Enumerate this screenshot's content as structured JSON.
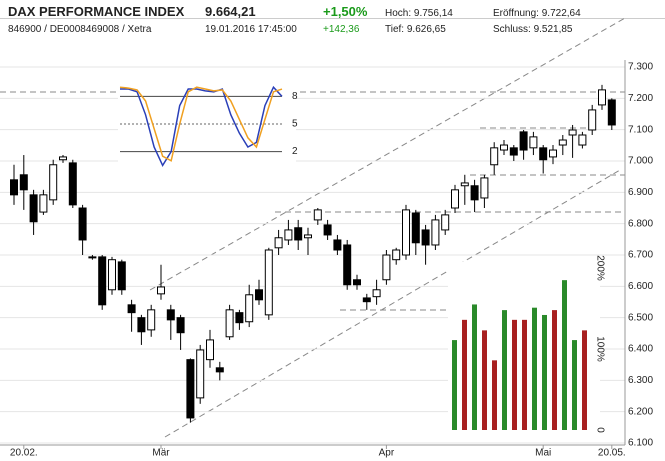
{
  "header": {
    "title": "DAX PERFORMANCE INDEX",
    "price": "9.664,21",
    "change_pct": "+1,50%",
    "high": "Hoch: 9.756,14",
    "open": "Eröffnung: 9.722,64",
    "ids": "846900 / DE0008469008 / Xetra",
    "datetime": "19.01.2016 17:45:00",
    "change_abs": "+142,36",
    "low": "Tief: 9.626,65",
    "close": "Schluss: 9.521,85"
  },
  "chart_data": [
    {
      "type": "candlestick",
      "up_color": "#ffffff",
      "down_color": "#000000",
      "categories": [
        null,
        "20.02.",
        null,
        null,
        null,
        null,
        null,
        null,
        null,
        null,
        null,
        null,
        null,
        null,
        null,
        "Mär",
        null,
        null,
        null,
        null,
        null,
        null,
        null,
        null,
        null,
        null,
        null,
        null,
        null,
        null,
        null,
        null,
        null,
        null,
        null,
        null,
        null,
        null,
        "Apr",
        null,
        null,
        null,
        null,
        null,
        null,
        null,
        null,
        null,
        null,
        null,
        null,
        null,
        null,
        null,
        "Mai",
        null,
        null,
        null,
        null,
        null,
        null,
        "20.05."
      ],
      "open": [
        6940,
        6956,
        6892,
        6837,
        6876,
        7004,
        6994,
        6850,
        6694,
        6694,
        6589,
        6678,
        6541,
        6500,
        6461,
        6576,
        6525,
        6500,
        6366,
        6244,
        6366,
        6340,
        6439,
        6516,
        6487,
        6589,
        6509,
        6723,
        6748,
        6787,
        6755,
        6812,
        6796,
        6748,
        6732,
        6621,
        6563,
        6567,
        6621,
        6685,
        6700,
        6834,
        6780,
        6732,
        6780,
        6850,
        6921,
        6921,
        6882,
        6988,
        7035,
        7042,
        7093,
        7042,
        7042,
        7013,
        7051,
        7083,
        7051,
        7099,
        7179,
        7195
      ],
      "high": [
        6988,
        7019,
        6908,
        6908,
        7004,
        7019,
        7004,
        6860,
        6700,
        6700,
        6694,
        6685,
        6557,
        6509,
        6541,
        6669,
        6541,
        6509,
        6370,
        6413,
        6461,
        6359,
        6541,
        6525,
        6605,
        6621,
        6723,
        6780,
        6812,
        6812,
        6787,
        6850,
        6812,
        6764,
        6748,
        6637,
        6576,
        6621,
        6716,
        6723,
        6860,
        6844,
        6796,
        6828,
        6844,
        6924,
        6956,
        6940,
        6956,
        7060,
        7067,
        7051,
        7099,
        7093,
        7051,
        7051,
        7083,
        7115,
        7093,
        7179,
        7243,
        7200
      ],
      "low": [
        6860,
        6844,
        6764,
        6828,
        6860,
        6994,
        6850,
        6700,
        6685,
        6525,
        6573,
        6573,
        6455,
        6413,
        6439,
        6557,
        6429,
        6397,
        6165,
        6225,
        6340,
        6300,
        6429,
        6461,
        6470,
        6541,
        6493,
        6700,
        6732,
        6716,
        6700,
        6796,
        6748,
        6700,
        6589,
        6589,
        6525,
        6541,
        6605,
        6669,
        6685,
        6700,
        6669,
        6716,
        6764,
        6834,
        6860,
        6837,
        6850,
        6956,
        7019,
        7000,
        7004,
        7019,
        6960,
        6990,
        7019,
        7010,
        7040,
        7083,
        7163,
        7099
      ],
      "close": [
        6892,
        6908,
        6806,
        6892,
        6988,
        7013,
        6860,
        6748,
        6691,
        6541,
        6685,
        6589,
        6516,
        6455,
        6525,
        6598,
        6493,
        6452,
        6180,
        6397,
        6429,
        6327,
        6525,
        6484,
        6573,
        6557,
        6716,
        6755,
        6780,
        6748,
        6764,
        6844,
        6764,
        6716,
        6605,
        6605,
        6551,
        6589,
        6700,
        6716,
        6844,
        6739,
        6732,
        6812,
        6828,
        6908,
        6930,
        6876,
        6946,
        7042,
        7051,
        7019,
        7035,
        7077,
        7004,
        7035,
        7067,
        7099,
        7083,
        7163,
        7227,
        7115
      ],
      "ylim": [
        6100,
        7300
      ],
      "yticks": [
        {
          "value": 6100,
          "label": "6.100"
        },
        {
          "value": 6200,
          "label": "6.200"
        },
        {
          "value": 6300,
          "label": "6.300"
        },
        {
          "value": 6400,
          "label": "6.400"
        },
        {
          "value": 6500,
          "label": "6.500"
        },
        {
          "value": 6600,
          "label": "6.600"
        },
        {
          "value": 6700,
          "label": "6.700"
        },
        {
          "value": 6800,
          "label": "6.800"
        },
        {
          "value": 6900,
          "label": "6.900"
        },
        {
          "value": 7000,
          "label": "7.000"
        },
        {
          "value": 7100,
          "label": "7.100"
        },
        {
          "value": 7200,
          "label": "7.200"
        },
        {
          "value": 7300,
          "label": "7.300"
        }
      ],
      "grid": true
    },
    {
      "type": "line",
      "series": [
        {
          "color": "#2a3fb8",
          "values": [
            88,
            88,
            85,
            60,
            25,
            5,
            20,
            70,
            88,
            88,
            86,
            85,
            88,
            60,
            40,
            25,
            30,
            70,
            90,
            80
          ]
        },
        {
          "color": "#f0a020",
          "values": [
            90,
            89,
            87,
            75,
            45,
            15,
            10,
            50,
            85,
            90,
            88,
            86,
            87,
            75,
            55,
            35,
            25,
            55,
            85,
            88
          ]
        }
      ],
      "ylim": [
        0,
        100
      ],
      "yticks": [
        {
          "value": 80,
          "label": "8"
        },
        {
          "value": 50,
          "label": "5"
        },
        {
          "value": 20,
          "label": "2"
        }
      ]
    },
    {
      "type": "bar",
      "values": [
        111,
        136,
        155,
        123,
        86,
        148,
        136,
        136,
        151,
        142,
        148,
        185,
        111,
        123
      ],
      "colors": [
        "#2a8a2a",
        "#a82020",
        "#2a8a2a",
        "#a82020",
        "#a82020",
        "#2a8a2a",
        "#a82020",
        "#a82020",
        "#2a8a2a",
        "#2a8a2a",
        "#a82020",
        "#2a8a2a",
        "#2a8a2a",
        "#a82020"
      ],
      "ylim": [
        0,
        200
      ],
      "yticks": [
        {
          "value": 0,
          "label": "0"
        },
        {
          "value": 100,
          "label": "100%"
        },
        {
          "value": 200,
          "label": "200%"
        }
      ]
    }
  ]
}
